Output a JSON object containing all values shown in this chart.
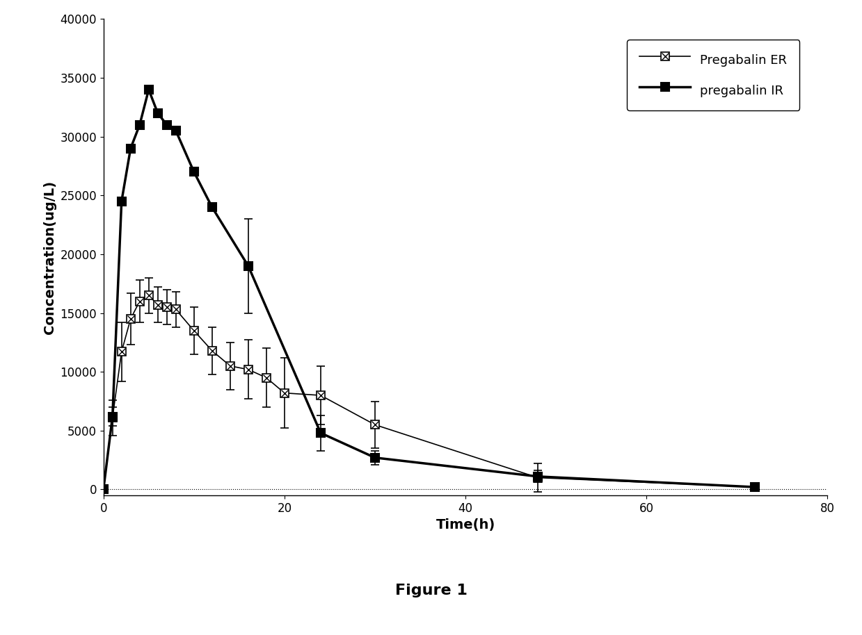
{
  "title": "Figure 1",
  "xlabel": "Time(h)",
  "ylabel": "Concentration(ug/L)",
  "xlim": [
    0,
    80
  ],
  "ylim": [
    -500,
    40000
  ],
  "xticks": [
    0,
    20,
    40,
    60,
    80
  ],
  "yticks": [
    0,
    5000,
    10000,
    15000,
    20000,
    25000,
    30000,
    35000,
    40000
  ],
  "er_x": [
    0,
    1,
    2,
    3,
    4,
    5,
    6,
    7,
    8,
    10,
    12,
    14,
    16,
    18,
    20,
    24,
    30,
    48,
    72
  ],
  "er_y": [
    0,
    6100,
    11700,
    14500,
    16000,
    16500,
    15700,
    15500,
    15300,
    13500,
    11800,
    10500,
    10200,
    9500,
    8200,
    8000,
    5500,
    1000,
    200
  ],
  "er_yerr": [
    0,
    1500,
    2500,
    2200,
    1800,
    1500,
    1500,
    1500,
    1500,
    2000,
    2000,
    2000,
    2500,
    2500,
    3000,
    2500,
    2000,
    1200,
    200
  ],
  "ir_x": [
    0,
    1,
    2,
    3,
    4,
    5,
    6,
    7,
    8,
    10,
    12,
    16,
    24,
    30,
    48,
    72
  ],
  "ir_y": [
    0,
    6200,
    24500,
    29000,
    31000,
    34000,
    32000,
    31000,
    30500,
    27000,
    24000,
    19000,
    4800,
    2700,
    1100,
    200
  ],
  "ir_yerr": [
    0,
    800,
    0,
    0,
    0,
    0,
    0,
    0,
    0,
    0,
    0,
    4000,
    1500,
    600,
    500,
    100
  ],
  "er_color": "#000000",
  "ir_color": "#000000",
  "background_color": "#ffffff",
  "legend_er": "Pregabalin ER",
  "legend_ir": "pregabalin IR",
  "title_fontsize": 16,
  "label_fontsize": 14,
  "tick_fontsize": 12,
  "legend_fontsize": 13
}
